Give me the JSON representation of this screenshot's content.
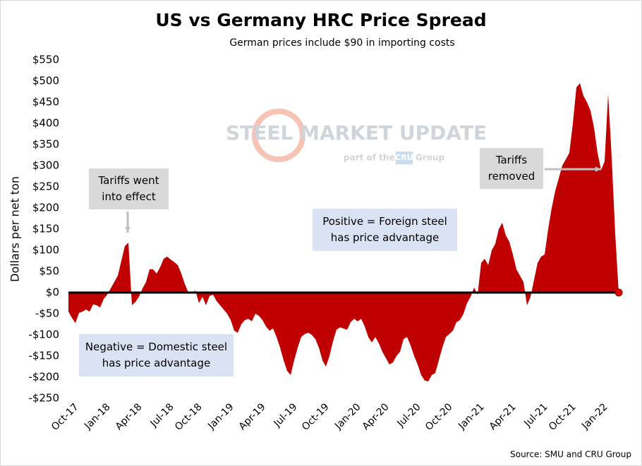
{
  "chart_data": {
    "type": "area",
    "title": "US vs Germany HRC Price Spread",
    "subtitle": "German prices include $90 in importing costs",
    "ylabel": "Dollars per net ton",
    "source": "Source: SMU and CRU Group",
    "watermark": {
      "brand": "STEEL MARKET UPDATE",
      "part": "part of the",
      "cru": "CRU",
      "group": "Group"
    },
    "color": "#c00000",
    "zero_line": true,
    "end_marker": true,
    "annotations": [
      {
        "lines": [
          "Tariffs went",
          "into effect"
        ]
      },
      {
        "lines": [
          "Tariffs",
          "removed"
        ]
      },
      {
        "lines": [
          "Positive = Foreign steel",
          "has price advantage"
        ]
      },
      {
        "lines": [
          "Negative = Domestic steel",
          "has price advantage"
        ]
      }
    ],
    "categories": [
      "Oct-17",
      null,
      null,
      null,
      null,
      null,
      null,
      null,
      null,
      "Jan-18",
      null,
      null,
      null,
      null,
      null,
      null,
      null,
      null,
      "Apr-18",
      null,
      null,
      null,
      null,
      null,
      null,
      null,
      null,
      "Jul-18",
      null,
      null,
      null,
      null,
      null,
      null,
      null,
      "Oct-18",
      null,
      null,
      null,
      null,
      null,
      null,
      null,
      null,
      "Jan-19",
      null,
      null,
      null,
      null,
      null,
      null,
      null,
      null,
      "Apr-19",
      null,
      null,
      null,
      null,
      null,
      null,
      null,
      null,
      "Jul-19",
      null,
      null,
      null,
      null,
      null,
      null,
      null,
      null,
      "Oct-19",
      null,
      null,
      null,
      null,
      null,
      null,
      null,
      null,
      "Jan-20",
      null,
      null,
      null,
      null,
      null,
      null,
      null,
      "Apr-20",
      null,
      null,
      null,
      null,
      null,
      null,
      null,
      null,
      "Jul-20",
      null,
      null,
      null,
      null,
      null,
      null,
      null,
      null,
      "Oct-20",
      null,
      null,
      null,
      null,
      null,
      null,
      null,
      null,
      "Jan-21",
      null,
      null,
      null,
      null,
      null,
      null,
      null,
      null,
      "Apr-21",
      null,
      null,
      null,
      null,
      null,
      null,
      null,
      null,
      "Jul-21",
      null,
      null,
      null,
      null,
      null,
      null,
      null,
      "Oct-21",
      null,
      null,
      null,
      null,
      null,
      null,
      null,
      null,
      "Jan-22",
      null,
      null,
      null,
      null,
      null,
      null
    ],
    "values": [
      -45,
      -60,
      -72,
      -48,
      -45,
      -40,
      -45,
      -28,
      -30,
      -35,
      -15,
      -5,
      10,
      25,
      40,
      75,
      110,
      118,
      -30,
      -22,
      -10,
      10,
      25,
      55,
      55,
      45,
      60,
      80,
      85,
      78,
      72,
      65,
      45,
      20,
      0,
      -3,
      5,
      -25,
      -10,
      -30,
      -8,
      -5,
      -20,
      -30,
      -40,
      -50,
      -65,
      -90,
      -95,
      -75,
      -65,
      -62,
      -68,
      -50,
      -55,
      -65,
      -80,
      -90,
      -85,
      -105,
      -130,
      -160,
      -185,
      -195,
      -160,
      -130,
      -105,
      -98,
      -95,
      -100,
      -110,
      -130,
      -160,
      -175,
      -150,
      -115,
      -88,
      -82,
      -85,
      -88,
      -70,
      -62,
      -68,
      -62,
      -80,
      -105,
      -118,
      -105,
      -120,
      -140,
      -155,
      -170,
      -165,
      -150,
      -140,
      -110,
      -105,
      -125,
      -150,
      -170,
      -195,
      -208,
      -210,
      -195,
      -190,
      -160,
      -130,
      -105,
      -98,
      -90,
      -70,
      -65,
      -50,
      -25,
      -10,
      12,
      -5,
      70,
      80,
      65,
      100,
      115,
      150,
      165,
      135,
      120,
      90,
      55,
      40,
      25,
      -30,
      -10,
      30,
      70,
      85,
      90,
      150,
      200,
      240,
      270,
      300,
      315,
      330,
      400,
      485,
      495,
      465,
      450,
      430,
      390,
      330,
      290,
      310,
      470,
      320,
      140,
      0
    ],
    "ylim": [
      -250,
      550
    ],
    "yticks": [
      {
        "value": -250,
        "label": "-$250"
      },
      {
        "value": -200,
        "label": "-$200"
      },
      {
        "value": -150,
        "label": "-$150"
      },
      {
        "value": -100,
        "label": "-$100"
      },
      {
        "value": -50,
        "label": "-$50"
      },
      {
        "value": 0,
        "label": "$0"
      },
      {
        "value": 50,
        "label": "$50"
      },
      {
        "value": 100,
        "label": "$100"
      },
      {
        "value": 150,
        "label": "$150"
      },
      {
        "value": 200,
        "label": "$200"
      },
      {
        "value": 250,
        "label": "$250"
      },
      {
        "value": 300,
        "label": "$300"
      },
      {
        "value": 350,
        "label": "$350"
      },
      {
        "value": 400,
        "label": "$400"
      },
      {
        "value": 450,
        "label": "$450"
      },
      {
        "value": 500,
        "label": "$500"
      },
      {
        "value": 550,
        "label": "$550"
      }
    ]
  }
}
